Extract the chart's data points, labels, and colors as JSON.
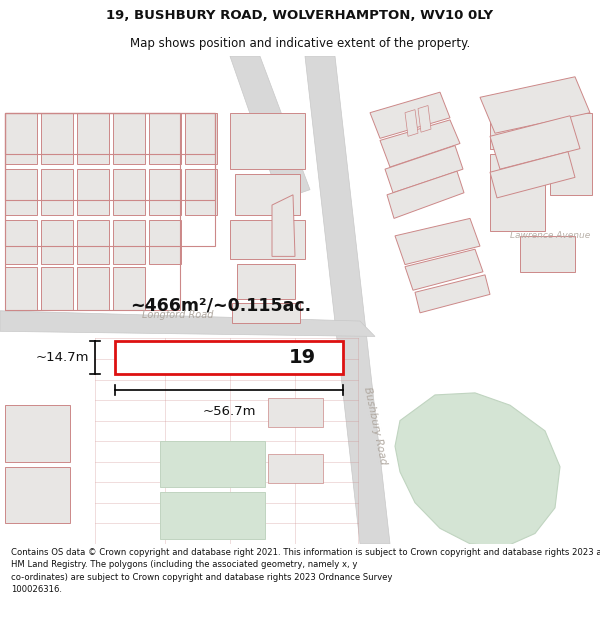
{
  "title_line1": "19, BUSHBURY ROAD, WOLVERHAMPTON, WV10 0LY",
  "title_line2": "Map shows position and indicative extent of the property.",
  "footer_text": "Contains OS data © Crown copyright and database right 2021. This information is subject to Crown copyright and database rights 2023 and is reproduced with the permission of\nHM Land Registry. The polygons (including the associated geometry, namely x, y\nco-ordinates) are subject to Crown copyright and database rights 2023 Ordnance Survey\n100026316.",
  "map_bg": "#f5f3f0",
  "road_color": "#d8d8d8",
  "road_edge": "#c8c8c8",
  "bld_fill": "#e8e6e4",
  "bld_edge": "#cc8888",
  "bld_edge2": "#dd9999",
  "green_fill": "#d4e4d4",
  "green_edge": "#c0d4c0",
  "water_fill": "#d4e4d4",
  "prop_fill": "#ffffff",
  "prop_edge": "#dd1111",
  "area_text": "~466m²/~0.115ac.",
  "width_text": "~56.7m",
  "height_text": "~14.7m",
  "number_text": "19",
  "longford_road_label": "Longford Road",
  "bushbury_road_label": "Bushbury Road",
  "lawrence_avenue_label": "Lawrence Avenue"
}
